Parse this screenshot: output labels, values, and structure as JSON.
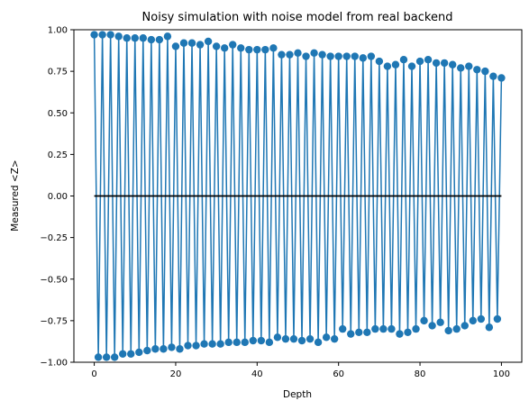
{
  "chart_data": {
    "type": "line",
    "title": "Noisy simulation with noise model from real backend",
    "xlabel": "Depth",
    "ylabel": "Measured <Z>",
    "xlim": [
      -5,
      105
    ],
    "ylim": [
      -1.0,
      1.0
    ],
    "x_ticks": [
      0,
      20,
      40,
      60,
      80,
      100
    ],
    "x_tick_labels": [
      "0",
      "20",
      "40",
      "60",
      "80",
      "100"
    ],
    "y_ticks": [
      1.0,
      0.75,
      0.5,
      0.25,
      0.0,
      -0.25,
      -0.5,
      -0.75,
      -1.0
    ],
    "y_tick_labels": [
      "1.00",
      "0.75",
      "0.50",
      "0.25",
      "0.00",
      "−0.25",
      "−0.50",
      "−0.75",
      "−1.00"
    ],
    "grid": false,
    "series": [
      {
        "color": "#1f77b4",
        "marker": "circle",
        "x": [
          0,
          1,
          2,
          3,
          4,
          5,
          6,
          7,
          8,
          9,
          10,
          11,
          12,
          13,
          14,
          15,
          16,
          17,
          18,
          19,
          20,
          21,
          22,
          23,
          24,
          25,
          26,
          27,
          28,
          29,
          30,
          31,
          32,
          33,
          34,
          35,
          36,
          37,
          38,
          39,
          40,
          41,
          42,
          43,
          44,
          45,
          46,
          47,
          48,
          49,
          50,
          51,
          52,
          53,
          54,
          55,
          56,
          57,
          58,
          59,
          60,
          61,
          62,
          63,
          64,
          65,
          66,
          67,
          68,
          69,
          70,
          71,
          72,
          73,
          74,
          75,
          76,
          77,
          78,
          79,
          80,
          81,
          82,
          83,
          84,
          85,
          86,
          87,
          88,
          89,
          90,
          91,
          92,
          93,
          94,
          95,
          96,
          97,
          98,
          99,
          100
        ],
        "values": [
          0.97,
          -0.97,
          0.97,
          -0.97,
          0.97,
          -0.97,
          0.96,
          -0.95,
          0.95,
          -0.95,
          0.95,
          -0.94,
          0.95,
          -0.93,
          0.94,
          -0.92,
          0.94,
          -0.92,
          0.96,
          -0.91,
          0.9,
          -0.92,
          0.92,
          -0.9,
          0.92,
          -0.9,
          0.91,
          -0.89,
          0.93,
          -0.89,
          0.9,
          -0.89,
          0.89,
          -0.88,
          0.91,
          -0.88,
          0.89,
          -0.88,
          0.88,
          -0.87,
          0.88,
          -0.87,
          0.88,
          -0.88,
          0.89,
          -0.85,
          0.85,
          -0.86,
          0.85,
          -0.86,
          0.86,
          -0.87,
          0.84,
          -0.86,
          0.86,
          -0.88,
          0.85,
          -0.85,
          0.84,
          -0.86,
          0.84,
          -0.8,
          0.84,
          -0.83,
          0.84,
          -0.82,
          0.83,
          -0.82,
          0.84,
          -0.8,
          0.81,
          -0.8,
          0.78,
          -0.8,
          0.79,
          -0.83,
          0.82,
          -0.82,
          0.78,
          -0.8,
          0.81,
          -0.75,
          0.82,
          -0.78,
          0.8,
          -0.76,
          0.8,
          -0.81,
          0.79,
          -0.8,
          0.77,
          -0.78,
          0.78,
          -0.75,
          0.76,
          -0.74,
          0.75,
          -0.79,
          0.72,
          -0.74,
          0.71
        ]
      },
      {
        "color": "#000000",
        "marker": "none",
        "x": [
          0,
          100
        ],
        "values": [
          0.0,
          0.0
        ]
      }
    ]
  }
}
